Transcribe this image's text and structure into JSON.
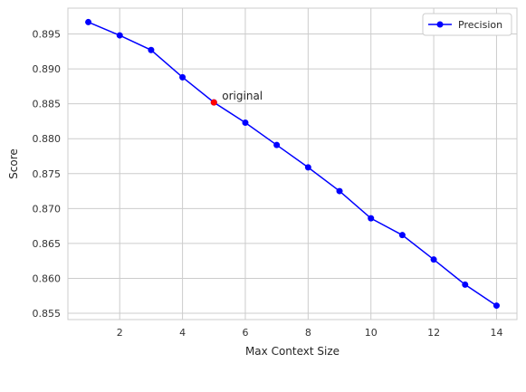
{
  "chart_data": {
    "type": "line",
    "xlabel": "Max Context Size",
    "ylabel": "Score",
    "xlim": [
      0.35,
      14.65
    ],
    "ylim": [
      0.8541,
      0.8987
    ],
    "xticks": [
      2,
      4,
      6,
      8,
      10,
      12,
      14
    ],
    "yticks": [
      0.855,
      0.86,
      0.865,
      0.87,
      0.875,
      0.88,
      0.885,
      0.89,
      0.895
    ],
    "ytick_labels": [
      "0.855",
      "0.860",
      "0.865",
      "0.870",
      "0.875",
      "0.880",
      "0.885",
      "0.890",
      "0.895"
    ],
    "grid": true,
    "legend_position": "top-right",
    "series": [
      {
        "name": "Precision",
        "color": "#0000ff",
        "marker": "circle",
        "x": [
          1,
          2,
          3,
          4,
          5,
          6,
          7,
          8,
          9,
          10,
          11,
          12,
          13,
          14
        ],
        "y": [
          0.8967,
          0.8948,
          0.8927,
          0.8888,
          0.8852,
          0.8823,
          0.8791,
          0.8759,
          0.8725,
          0.8686,
          0.8662,
          0.8627,
          0.8591,
          0.8561
        ]
      }
    ],
    "annotations": [
      {
        "text": "original",
        "x": 5,
        "y": 0.8852,
        "color": "#ff0000"
      }
    ]
  }
}
